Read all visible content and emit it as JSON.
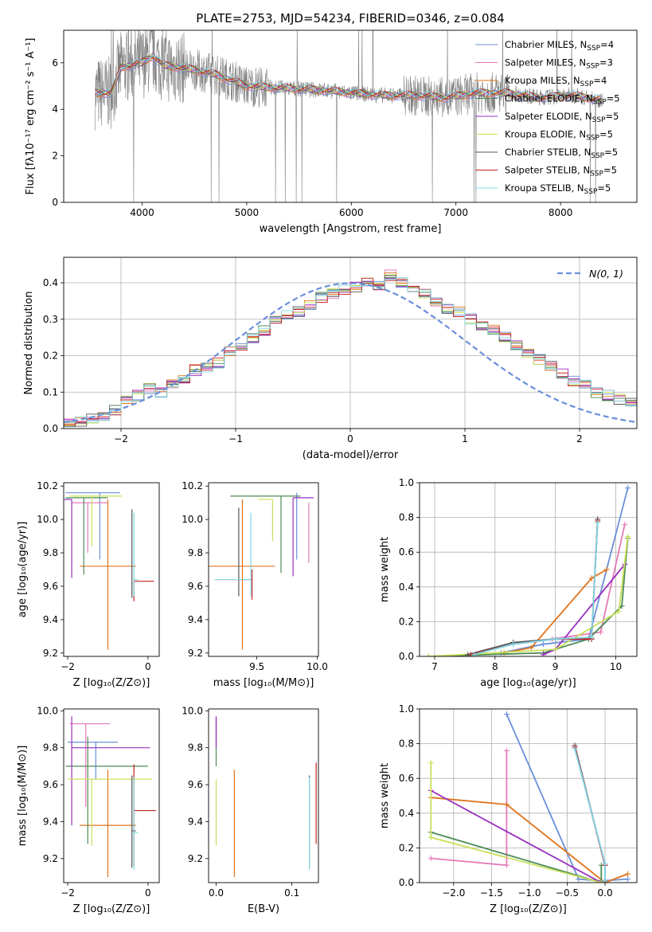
{
  "figure": {
    "title": "PLATE=2753, MJD=54234, FIBERID=0346, z=0.084",
    "colors": {
      "chabrier_miles": "#6a8fdb",
      "salpeter_miles": "#e67ab8",
      "kroupa_miles": "#e0731b",
      "chabrier_elodie": "#4c8a55",
      "salpeter_elodie": "#9a2fc0",
      "kroupa_elodie": "#c8e05a",
      "chabrier_stelib": "#555555",
      "salpeter_stelib": "#c62020",
      "kroupa_stelib": "#7fd8e8",
      "data": "#808080"
    }
  },
  "chart_data": [
    {
      "id": "spectrum",
      "type": "line",
      "xlabel": "wavelength [Angstrom, rest frame]",
      "ylabel": "Flux [fλ10⁻¹⁷ erg cm⁻² s⁻¹ A⁻¹]",
      "xlim": [
        3250,
        8730
      ],
      "ylim": [
        0,
        7.4
      ],
      "xticks": [
        4000,
        5000,
        6000,
        7000,
        8000
      ],
      "yticks": [
        0,
        2,
        4,
        6
      ],
      "legend_position": "top-right",
      "continuum": {
        "x": [
          3550,
          3700,
          3800,
          4000,
          4100,
          4200,
          4500,
          4700,
          5000,
          5400,
          5800,
          6000,
          6300,
          6600,
          6900,
          7200,
          7500,
          7800,
          8100,
          8400
        ],
        "y": [
          4.7,
          4.7,
          5.8,
          6.0,
          6.3,
          5.9,
          5.7,
          5.5,
          5.0,
          4.9,
          4.8,
          4.7,
          4.6,
          4.6,
          4.5,
          4.7,
          4.7,
          4.5,
          4.6,
          4.4
        ]
      },
      "series": [
        {
          "name": "Chabrier MILES, N_SSP=4",
          "color_key": "chabrier_miles"
        },
        {
          "name": "Salpeter MILES, N_SSP=3",
          "color_key": "salpeter_miles"
        },
        {
          "name": "Kroupa MILES, N_SSP=4",
          "color_key": "kroupa_miles"
        },
        {
          "name": "Chabrier ELODIE, N_SSP=5",
          "color_key": "chabrier_elodie"
        },
        {
          "name": "Salpeter ELODIE, N_SSP=5",
          "color_key": "salpeter_elodie"
        },
        {
          "name": "Kroupa ELODIE, N_SSP=5",
          "color_key": "kroupa_elodie"
        },
        {
          "name": "Chabrier STELIB, N_SSP=5",
          "color_key": "chabrier_stelib"
        },
        {
          "name": "Salpeter STELIB, N_SSP=5",
          "color_key": "salpeter_stelib"
        },
        {
          "name": "Kroupa STELIB, N_SSP=5",
          "color_key": "kroupa_stelib"
        }
      ]
    },
    {
      "id": "residuals",
      "type": "line",
      "xlabel": "(data-model)/error",
      "ylabel": "Normed distribution",
      "xlim": [
        -2.5,
        2.5
      ],
      "ylim": [
        0,
        0.47
      ],
      "xticks": [
        -2,
        -1,
        0,
        1,
        2
      ],
      "yticks": [
        0,
        0.1,
        0.2,
        0.3,
        0.4
      ],
      "grid": true,
      "legend_position": "top-right",
      "gaussian_label": "N(0, 1)",
      "bins": {
        "start": -2.5,
        "width": 0.1
      },
      "histogram_values": [
        0.02,
        0.02,
        0.03,
        0.03,
        0.05,
        0.08,
        0.09,
        0.11,
        0.1,
        0.12,
        0.14,
        0.16,
        0.17,
        0.18,
        0.21,
        0.23,
        0.25,
        0.27,
        0.3,
        0.31,
        0.32,
        0.34,
        0.36,
        0.37,
        0.38,
        0.39,
        0.4,
        0.39,
        0.42,
        0.4,
        0.38,
        0.37,
        0.35,
        0.33,
        0.32,
        0.3,
        0.28,
        0.27,
        0.25,
        0.23,
        0.21,
        0.19,
        0.17,
        0.15,
        0.13,
        0.12,
        0.1,
        0.09,
        0.08,
        0.07,
        0.05,
        0.05,
        0.04,
        0.04,
        0.03,
        0.03,
        0.03,
        0.02,
        0.02,
        0.03
      ]
    },
    {
      "id": "age_vs_Z",
      "type": "scatter",
      "xlabel": "Z [log₁₀(Z/Z⊙)]",
      "ylabel": "age  [log₁₀(age/yr)]",
      "xlim": [
        -2.1,
        0.28
      ],
      "ylim": [
        9.18,
        10.22
      ],
      "xticks": [
        -2,
        0
      ],
      "yticks": [
        9.2,
        9.4,
        9.6,
        9.8,
        10.0,
        10.2
      ],
      "points": [
        {
          "x": -1.2,
          "y": 10.16,
          "xerr": [
            0.85,
            0.5
          ],
          "yerr": [
            0.4,
            0.0
          ],
          "color_key": "chabrier_miles"
        },
        {
          "x": -1.5,
          "y": 10.1,
          "xerr": [
            0.4,
            0.5
          ],
          "yerr": [
            0.3,
            0.0
          ],
          "color_key": "salpeter_miles"
        },
        {
          "x": -1.0,
          "y": 9.72,
          "xerr": [
            0.7,
            0.7
          ],
          "yerr": [
            0.5,
            0.4
          ],
          "color_key": "kroupa_miles"
        },
        {
          "x": -1.6,
          "y": 10.13,
          "xerr": [
            0.45,
            0.6
          ],
          "yerr": [
            0.46,
            0.0
          ],
          "color_key": "chabrier_elodie"
        },
        {
          "x": -1.9,
          "y": 10.12,
          "xerr": [
            0.2,
            0.0
          ],
          "yerr": [
            0.47,
            0.0
          ],
          "color_key": "salpeter_elodie"
        },
        {
          "x": -1.4,
          "y": 10.14,
          "xerr": [
            0.55,
            0.75
          ],
          "yerr": [
            0.3,
            0.0
          ],
          "color_key": "kroupa_elodie"
        },
        {
          "x": -0.4,
          "y": 9.63,
          "xerr": [
            0.0,
            0.0
          ],
          "yerr": [
            0.1,
            0.43
          ],
          "color_key": "chabrier_stelib"
        },
        {
          "x": -0.35,
          "y": 9.63,
          "xerr": [
            0.0,
            0.5
          ],
          "yerr": [
            0.12,
            0.0
          ],
          "color_key": "salpeter_stelib"
        },
        {
          "x": -0.35,
          "y": 9.64,
          "xerr": [
            0.0,
            0.1
          ],
          "yerr": [
            0.1,
            0.4
          ],
          "color_key": "kroupa_stelib"
        }
      ]
    },
    {
      "id": "age_vs_mass",
      "type": "scatter",
      "xlabel": "mass [log₁₀(M/M⊙)]",
      "xlim": [
        9.1,
        10.01
      ],
      "ylim": [
        9.18,
        10.22
      ],
      "xticks": [
        9.5,
        10.0
      ],
      "yticks": [
        9.2,
        9.4,
        9.6,
        9.8,
        10.0,
        10.2
      ],
      "points": [
        {
          "x": 9.83,
          "y": 10.16,
          "xerr": [
            0.0,
            0.0
          ],
          "yerr": [
            0.4,
            0.0
          ],
          "color_key": "chabrier_miles"
        },
        {
          "x": 9.93,
          "y": 10.1,
          "xerr": [
            0.0,
            0.0
          ],
          "yerr": [
            0.36,
            0.0
          ],
          "color_key": "salpeter_miles"
        },
        {
          "x": 9.38,
          "y": 9.72,
          "xerr": [
            0.28,
            0.27
          ],
          "yerr": [
            0.5,
            0.4
          ],
          "color_key": "kroupa_miles"
        },
        {
          "x": 9.7,
          "y": 10.14,
          "xerr": [
            0.42,
            0.16
          ],
          "yerr": [
            0.46,
            0.0
          ],
          "color_key": "chabrier_elodie"
        },
        {
          "x": 9.8,
          "y": 10.13,
          "xerr": [
            0.0,
            0.17
          ],
          "yerr": [
            0.47,
            0.0
          ],
          "color_key": "salpeter_elodie"
        },
        {
          "x": 9.63,
          "y": 10.12,
          "xerr": [
            0.12,
            0.0
          ],
          "yerr": [
            0.25,
            0.0
          ],
          "color_key": "kroupa_elodie"
        },
        {
          "x": 9.35,
          "y": 9.64,
          "xerr": [
            0.0,
            0.0
          ],
          "yerr": [
            0.1,
            0.43
          ],
          "color_key": "chabrier_stelib"
        },
        {
          "x": 9.46,
          "y": 9.64,
          "xerr": [
            0.3,
            0.0
          ],
          "yerr": [
            0.12,
            0.06
          ],
          "color_key": "salpeter_stelib"
        },
        {
          "x": 9.45,
          "y": 9.64,
          "xerr": [
            0.3,
            0.0
          ],
          "yerr": [
            0.1,
            0.4
          ],
          "color_key": "kroupa_stelib"
        }
      ]
    },
    {
      "id": "massweight_vs_age",
      "type": "line",
      "xlabel": "age  [log₁₀(age/yr)]",
      "ylabel": "mass weight",
      "xlim": [
        6.75,
        10.35
      ],
      "ylim": [
        0,
        1.0
      ],
      "xticks": [
        7,
        8,
        9,
        10
      ],
      "yticks": [
        0.0,
        0.2,
        0.4,
        0.6,
        0.8,
        1.0
      ],
      "grid": true,
      "series": [
        {
          "color_key": "chabrier_miles",
          "x": [
            8.1,
            8.8,
            9.55,
            10.2
          ],
          "y": [
            0.02,
            0.07,
            0.1,
            0.97
          ]
        },
        {
          "color_key": "salpeter_miles",
          "x": [
            8.95,
            9.75,
            10.15
          ],
          "y": [
            0.1,
            0.14,
            0.76
          ]
        },
        {
          "color_key": "kroupa_miles",
          "x": [
            8.15,
            8.6,
            9.6,
            9.85
          ],
          "y": [
            0.02,
            0.05,
            0.45,
            0.5
          ]
        },
        {
          "color_key": "chabrier_elodie",
          "x": [
            6.9,
            8.8,
            9.55,
            10.1,
            10.2
          ],
          "y": [
            0.0,
            0.02,
            0.1,
            0.29,
            0.68
          ]
        },
        {
          "color_key": "salpeter_elodie",
          "x": [
            8.8,
            9.0,
            10.15
          ],
          "y": [
            0.01,
            0.04,
            0.53
          ]
        },
        {
          "color_key": "kroupa_elodie",
          "x": [
            6.9,
            9.0,
            10.05,
            10.2
          ],
          "y": [
            0.0,
            0.04,
            0.26,
            0.69
          ]
        },
        {
          "color_key": "chabrier_stelib",
          "x": [
            7.55,
            8.3,
            9.0,
            9.6,
            9.7
          ],
          "y": [
            0.01,
            0.08,
            0.1,
            0.1,
            0.79
          ]
        },
        {
          "color_key": "salpeter_stelib",
          "x": [
            7.6,
            8.3,
            9.0,
            9.6,
            9.7
          ],
          "y": [
            0.01,
            0.07,
            0.1,
            0.1,
            0.78
          ]
        },
        {
          "color_key": "kroupa_stelib",
          "x": [
            7.65,
            8.3,
            9.0,
            9.6,
            9.7
          ],
          "y": [
            0.01,
            0.07,
            0.1,
            0.11,
            0.77
          ]
        }
      ]
    },
    {
      "id": "mass_vs_Z",
      "type": "scatter",
      "xlabel": "Z [log₁₀(Z/Z⊙)]",
      "ylabel": "mass [log₁₀(M/M⊙)]",
      "xlim": [
        -2.1,
        0.28
      ],
      "ylim": [
        9.07,
        10.01
      ],
      "xticks": [
        -2,
        0
      ],
      "yticks": [
        9.2,
        9.4,
        9.6,
        9.8,
        10.0
      ],
      "points": [
        {
          "x": -1.3,
          "y": 9.83,
          "xerr": [
            0.7,
            0.55
          ],
          "yerr": [
            0.2,
            0.0
          ],
          "color_key": "chabrier_miles"
        },
        {
          "x": -1.55,
          "y": 9.93,
          "xerr": [
            0.4,
            0.6
          ],
          "yerr": [
            0.45,
            0.0
          ],
          "color_key": "salpeter_miles"
        },
        {
          "x": -1.0,
          "y": 9.38,
          "xerr": [
            0.7,
            0.7
          ],
          "yerr": [
            0.28,
            0.3
          ],
          "color_key": "kroupa_miles"
        },
        {
          "x": -1.5,
          "y": 9.7,
          "xerr": [
            0.55,
            1.5
          ],
          "yerr": [
            0.42,
            0.16
          ],
          "color_key": "chabrier_elodie"
        },
        {
          "x": -1.9,
          "y": 9.8,
          "xerr": [
            0.0,
            1.95
          ],
          "yerr": [
            0.42,
            0.17
          ],
          "color_key": "salpeter_elodie"
        },
        {
          "x": -1.4,
          "y": 9.63,
          "xerr": [
            0.6,
            1.5
          ],
          "yerr": [
            0.36,
            0.0
          ],
          "color_key": "kroupa_elodie"
        },
        {
          "x": -0.4,
          "y": 9.35,
          "xerr": [
            0.0,
            0.1
          ],
          "yerr": [
            0.2,
            0.3
          ],
          "color_key": "chabrier_stelib"
        },
        {
          "x": -0.35,
          "y": 9.46,
          "xerr": [
            0.0,
            0.55
          ],
          "yerr": [
            0.3,
            0.25
          ],
          "color_key": "salpeter_stelib"
        },
        {
          "x": -0.35,
          "y": 9.34,
          "xerr": [
            0.0,
            0.1
          ],
          "yerr": [
            0.2,
            0.3
          ],
          "color_key": "kroupa_stelib"
        }
      ]
    },
    {
      "id": "mass_vs_EBV",
      "type": "scatter",
      "xlabel": "E(B-V)",
      "xlim": [
        -0.01,
        0.135
      ],
      "ylim": [
        9.07,
        10.01
      ],
      "xticks": [
        0.0,
        0.1
      ],
      "yticks": [
        9.2,
        9.4,
        9.6,
        9.8,
        10.0
      ],
      "points": [
        {
          "x": 0.0,
          "y": 9.83,
          "xerr": [
            0,
            0
          ],
          "yerr": [
            0.0,
            0.12
          ],
          "color_key": "chabrier_miles"
        },
        {
          "x": 0.0,
          "y": 9.93,
          "xerr": [
            0,
            0
          ],
          "yerr": [
            0.0,
            0.04
          ],
          "color_key": "salpeter_miles"
        },
        {
          "x": 0.024,
          "y": 9.38,
          "xerr": [
            0,
            0
          ],
          "yerr": [
            0.28,
            0.3
          ],
          "color_key": "kroupa_miles"
        },
        {
          "x": 0.0,
          "y": 9.7,
          "xerr": [
            0,
            0
          ],
          "yerr": [
            0.0,
            0.26
          ],
          "color_key": "chabrier_elodie"
        },
        {
          "x": 0.0,
          "y": 9.8,
          "xerr": [
            0,
            0
          ],
          "yerr": [
            0.0,
            0.17
          ],
          "color_key": "salpeter_elodie"
        },
        {
          "x": 0.0,
          "y": 9.63,
          "xerr": [
            0,
            0
          ],
          "yerr": [
            0.36,
            0.0
          ],
          "color_key": "kroupa_elodie"
        },
        {
          "x": 0.123,
          "y": 9.35,
          "xerr": [
            0,
            0
          ],
          "yerr": [
            0.2,
            0.3
          ],
          "color_key": "chabrier_stelib"
        },
        {
          "x": 0.132,
          "y": 9.46,
          "xerr": [
            0,
            0
          ],
          "yerr": [
            0.18,
            0.26
          ],
          "color_key": "salpeter_stelib"
        },
        {
          "x": 0.123,
          "y": 9.34,
          "xerr": [
            0,
            0
          ],
          "yerr": [
            0.2,
            0.3
          ],
          "color_key": "kroupa_stelib"
        }
      ]
    },
    {
      "id": "massweight_vs_Z",
      "type": "line",
      "xlabel": "Z [log₁₀(Z/Z⊙)]",
      "ylabel": "mass weight",
      "xlim": [
        -2.45,
        0.42
      ],
      "ylim": [
        0,
        1.0
      ],
      "xticks": [
        -2.0,
        -1.5,
        -1.0,
        -0.5,
        0.0
      ],
      "yticks": [
        0.0,
        0.2,
        0.4,
        0.6,
        0.8,
        1.0
      ],
      "grid": true,
      "series": [
        {
          "color_key": "chabrier_miles",
          "x": [
            -1.3,
            -0.35,
            -0.05,
            0.3
          ],
          "y": [
            0.97,
            0.02,
            0.01,
            0.02
          ]
        },
        {
          "color_key": "salpeter_miles",
          "x": [
            -2.3,
            -1.3,
            -1.3
          ],
          "y": [
            0.14,
            0.1,
            0.76
          ]
        },
        {
          "color_key": "kroupa_miles",
          "x": [
            -2.3,
            -1.3,
            0.0,
            0.3
          ],
          "y": [
            0.49,
            0.45,
            0.0,
            0.05
          ]
        },
        {
          "color_key": "chabrier_elodie",
          "x": [
            -2.3,
            -0.05,
            -0.05
          ],
          "y": [
            0.29,
            0.0,
            0.1
          ]
        },
        {
          "color_key": "salpeter_elodie",
          "x": [
            -2.3,
            -0.05
          ],
          "y": [
            0.53,
            0.0
          ]
        },
        {
          "color_key": "kroupa_elodie",
          "x": [
            -2.3,
            -2.3,
            -0.05
          ],
          "y": [
            0.69,
            0.26,
            0.0
          ]
        },
        {
          "color_key": "chabrier_stelib",
          "x": [
            -0.4,
            0.0,
            0.0
          ],
          "y": [
            0.79,
            0.1,
            0.01
          ]
        },
        {
          "color_key": "salpeter_stelib",
          "x": [
            -0.4,
            0.0
          ],
          "y": [
            0.78,
            0.1
          ]
        },
        {
          "color_key": "kroupa_stelib",
          "x": [
            -0.4,
            0.0,
            0.0
          ],
          "y": [
            0.77,
            0.11,
            0.01
          ]
        }
      ]
    }
  ]
}
